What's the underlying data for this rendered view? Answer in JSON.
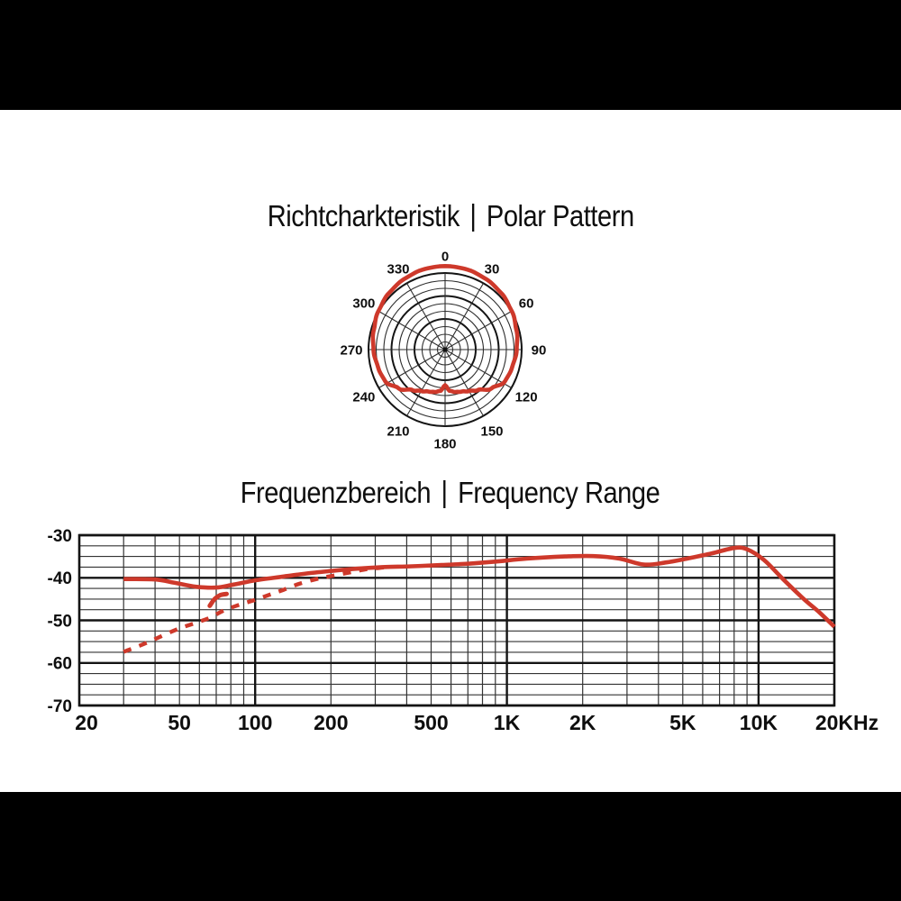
{
  "page": {
    "background": "#000000",
    "canvas_background": "#ffffff"
  },
  "colors": {
    "curve_red": "#ce392b",
    "grid_bold": "#141414",
    "grid_light": "#333333",
    "text": "#0e0e0e"
  },
  "polar_section": {
    "title_de": "Richtcharkteristik",
    "separator": "|",
    "title_en": "Polar Pattern"
  },
  "frequency_section": {
    "title_de": "Frequenzbereich",
    "separator": "|",
    "title_en": "Frequency Range"
  },
  "chart_data": [
    {
      "type": "polar",
      "name": "polar-pattern",
      "title": "Richtcharkteristik | Polar Pattern",
      "angle_step_deg": 30,
      "angle_labels": [
        "0",
        "30",
        "60",
        "90",
        "120",
        "150",
        "180",
        "210",
        "240",
        "270",
        "300",
        "330"
      ],
      "rings": 10,
      "bold_rings": [
        4,
        7,
        10
      ],
      "symmetric": true,
      "pattern_r_by_theta": [
        [
          0,
          1.09
        ],
        [
          15,
          1.085
        ],
        [
          30,
          1.065
        ],
        [
          45,
          1.04
        ],
        [
          60,
          1.005
        ],
        [
          75,
          0.965
        ],
        [
          90,
          0.935
        ],
        [
          105,
          0.905
        ],
        [
          118,
          0.885
        ],
        [
          130,
          0.79
        ],
        [
          141,
          0.68
        ],
        [
          150,
          0.625
        ],
        [
          158,
          0.59
        ],
        [
          166,
          0.57
        ],
        [
          173,
          0.545
        ],
        [
          180,
          0.465
        ]
      ]
    },
    {
      "type": "line",
      "name": "frequency-response",
      "title": "Frequenzbereich | Frequency Range",
      "x_scale": "log",
      "x_range": [
        20,
        20000
      ],
      "y_range": [
        -70,
        -30
      ],
      "y_minor_step": 2.5,
      "x_ticks": [
        {
          "v": 20,
          "label": "20"
        },
        {
          "v": 50,
          "label": "50"
        },
        {
          "v": 100,
          "label": "100"
        },
        {
          "v": 200,
          "label": "200"
        },
        {
          "v": 500,
          "label": "500"
        },
        {
          "v": 1000,
          "label": "1K"
        },
        {
          "v": 2000,
          "label": "2K"
        },
        {
          "v": 5000,
          "label": "5K"
        },
        {
          "v": 10000,
          "label": "10K"
        },
        {
          "v": 20000,
          "label": "20KHz"
        }
      ],
      "y_ticks": [
        {
          "v": -30,
          "label": "-30"
        },
        {
          "v": -40,
          "label": "-40"
        },
        {
          "v": -50,
          "label": "-50"
        },
        {
          "v": -60,
          "label": "-60"
        },
        {
          "v": -70,
          "label": "-70"
        }
      ],
      "series": [
        {
          "name": "on-axis-response",
          "style": "solid",
          "points": [
            [
              30,
              -40.3
            ],
            [
              40,
              -40.4
            ],
            [
              48,
              -41.2
            ],
            [
              58,
              -42.1
            ],
            [
              70,
              -42.3
            ],
            [
              82,
              -41.6
            ],
            [
              100,
              -40.6
            ],
            [
              130,
              -39.7
            ],
            [
              160,
              -39.0
            ],
            [
              200,
              -38.4
            ],
            [
              250,
              -37.9
            ],
            [
              320,
              -37.5
            ],
            [
              420,
              -37.3
            ],
            [
              550,
              -37.0
            ],
            [
              700,
              -36.7
            ],
            [
              900,
              -36.2
            ],
            [
              1200,
              -35.5
            ],
            [
              1700,
              -35.0
            ],
            [
              2200,
              -34.9
            ],
            [
              2800,
              -35.5
            ],
            [
              3500,
              -36.9
            ],
            [
              4300,
              -36.4
            ],
            [
              5200,
              -35.5
            ],
            [
              6500,
              -34.3
            ],
            [
              8000,
              -33.0
            ],
            [
              9000,
              -33.3
            ],
            [
              10500,
              -35.8
            ],
            [
              12500,
              -40.3
            ],
            [
              15000,
              -44.8
            ],
            [
              17500,
              -48.2
            ],
            [
              20000,
              -51.5
            ]
          ]
        },
        {
          "name": "bass-rolloff-response",
          "style": "dashed",
          "points": [
            [
              30,
              -57.4
            ],
            [
              37,
              -55.3
            ],
            [
              48,
              -52.3
            ],
            [
              58,
              -50.6
            ],
            [
              66,
              -49.4
            ],
            [
              75,
              -47.7
            ],
            [
              88,
              -46.2
            ],
            [
              100,
              -45.2
            ],
            [
              115,
              -43.9
            ],
            [
              130,
              -42.8
            ],
            [
              150,
              -41.4
            ],
            [
              175,
              -40.3
            ],
            [
              200,
              -39.6
            ],
            [
              235,
              -38.8
            ],
            [
              270,
              -38.1
            ],
            [
              310,
              -37.7
            ],
            [
              350,
              -37.4
            ]
          ]
        },
        {
          "name": "rolloff-knee-segment",
          "style": "solid-short",
          "points": [
            [
              66,
              -46.6
            ],
            [
              69,
              -45.0
            ],
            [
              72.5,
              -44.1
            ],
            [
              77,
              -43.8
            ]
          ]
        }
      ]
    }
  ]
}
